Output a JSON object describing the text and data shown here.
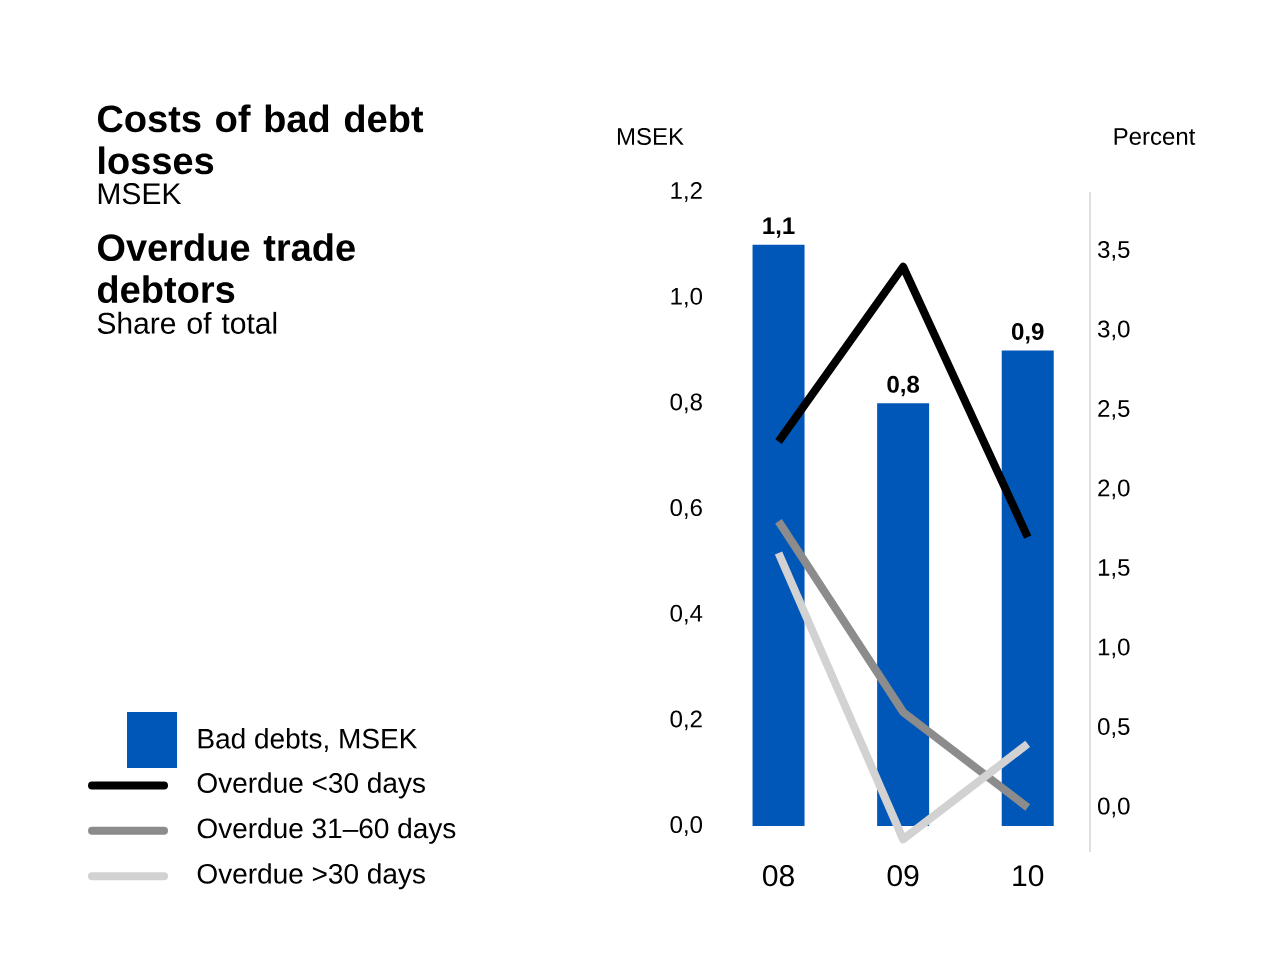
{
  "chart_data": {
    "type": "bar",
    "title": "Costs of bad debt losses",
    "subtitle": "MSEK",
    "annotations": [
      "Overdue trade debtors",
      "Share of total"
    ],
    "ylabel": "MSEK",
    "y2label": "Percent",
    "categories": [
      "08",
      "09",
      "10"
    ],
    "series": [
      {
        "name": "Bad debts, MSEK",
        "color": "#0057b8",
        "values": [
          1.1,
          0.8,
          0.9
        ],
        "value_labels": [
          "1,1",
          "0,8",
          "0,9"
        ]
      },
      {
        "name": "Overdue <30 days",
        "type": "line",
        "axis": "y2",
        "color": "#000000",
        "values": [
          2.3,
          3.4,
          1.7
        ]
      },
      {
        "name": "Overdue 31–60 days",
        "type": "line",
        "axis": "y2",
        "color": "#8c8c8c",
        "values": [
          1.8,
          0.6,
          0.0
        ]
      },
      {
        "name": "Overdue >30 days",
        "type": "line",
        "axis": "y2",
        "color": "#d2d2d2",
        "values": [
          1.6,
          -0.2,
          0.4
        ]
      }
    ],
    "ylim": [
      0,
      1.2
    ],
    "yticks": [
      {
        "value": 0,
        "label": "0,0"
      },
      {
        "value": 0.2,
        "label": "0,2"
      },
      {
        "value": 0.4,
        "label": "0,4"
      },
      {
        "value": 0.6,
        "label": "0,6"
      },
      {
        "value": 0.8,
        "label": "0,8"
      },
      {
        "value": 1.0,
        "label": "1,0"
      },
      {
        "value": 1.2,
        "label": "1,2"
      }
    ],
    "y2lim": [
      -0.28,
      3.87
    ],
    "y2ticks": [
      {
        "value": 0,
        "label": "0,0"
      },
      {
        "value": 0.5,
        "label": "0,5"
      },
      {
        "value": 1.0,
        "label": "1,0"
      },
      {
        "value": 1.5,
        "label": "1,5"
      },
      {
        "value": 2.0,
        "label": "2,0"
      },
      {
        "value": 2.5,
        "label": "2,5"
      },
      {
        "value": 3.0,
        "label": "3,0"
      },
      {
        "value": 3.5,
        "label": "3,5"
      }
    ],
    "grid": false,
    "legend": "bottom left",
    "line_style": "solid",
    "marker": "none"
  }
}
